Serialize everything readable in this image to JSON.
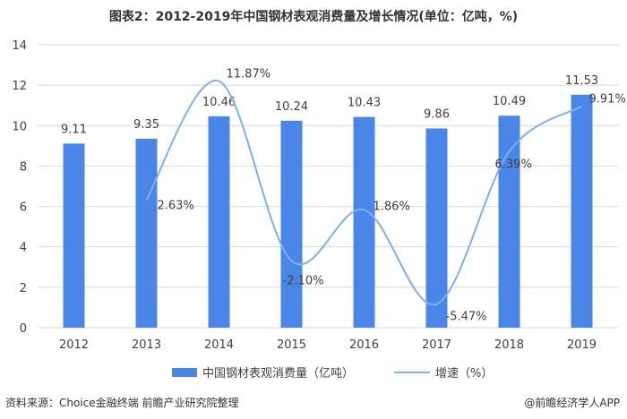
{
  "title": "图表2：2012-2019年中国钢材表观消费量及增长情况(单位：亿吨，%)",
  "source": "资料来源：Choice金融终端 前瞻产业研究院整理",
  "brand": "@前瞻经济学人APP",
  "watermark": "前瞻产业研究院",
  "colors": {
    "bar": "#4a86e8",
    "line": "#7fb0e8",
    "grid": "#d9d9d9",
    "text": "#404040"
  },
  "chart_data": {
    "type": "bar",
    "title": "图表2：2012-2019年中国钢材表观消费量及增长情况(单位：亿吨，%)",
    "categories": [
      "2012",
      "2013",
      "2014",
      "2015",
      "2016",
      "2017",
      "2018",
      "2019"
    ],
    "ylim": [
      0,
      14
    ],
    "yticks": [
      0,
      2,
      4,
      6,
      8,
      10,
      12,
      14
    ],
    "grid": true,
    "legend_position": "bottom",
    "series": [
      {
        "name": "中国钢材表观消费量（亿吨）",
        "type": "bar",
        "values": [
          9.11,
          9.35,
          10.46,
          10.24,
          10.43,
          9.86,
          10.49,
          11.53
        ],
        "labels": [
          "9.11",
          "9.35",
          "10.46",
          "10.24",
          "10.43",
          "9.86",
          "10.49",
          "11.53"
        ]
      },
      {
        "name": "增速（%）",
        "type": "line",
        "smooth": true,
        "values": [
          null,
          2.63,
          11.87,
          -2.1,
          1.86,
          -5.47,
          6.39,
          9.91
        ],
        "labels": [
          "",
          "2.63%",
          "11.87%",
          "-2.10%",
          "1.86%",
          "-5.47%",
          "6.39%",
          "9.91%"
        ]
      }
    ]
  }
}
